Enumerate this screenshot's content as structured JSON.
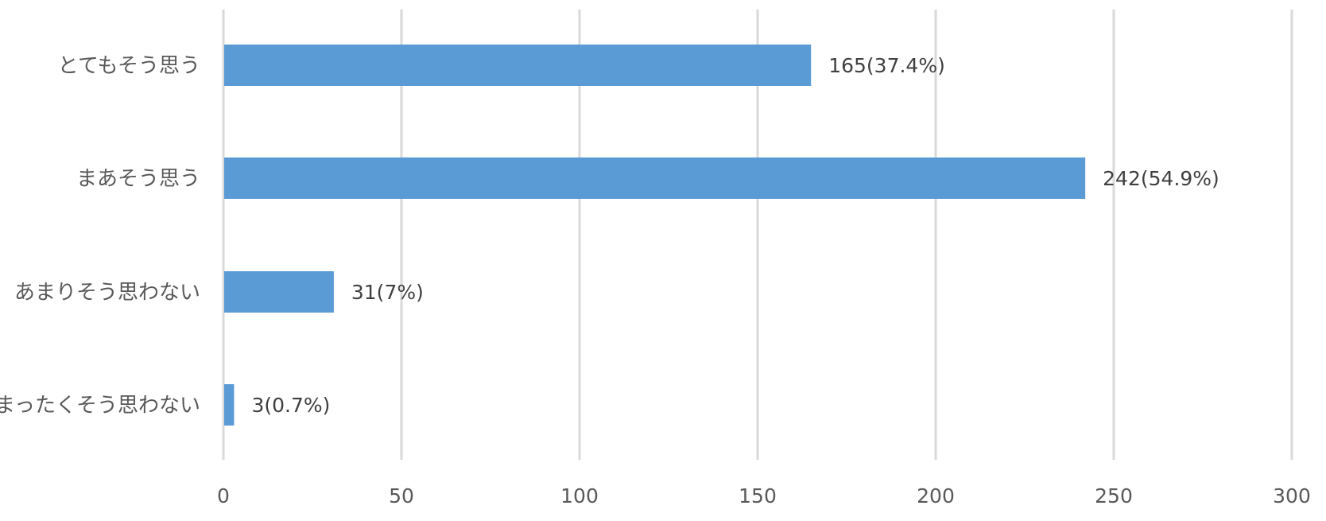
{
  "chart_data": {
    "type": "bar",
    "orientation": "horizontal",
    "categories": [
      "とてもそう思う",
      "まあそう思う",
      "あまりそう思わない",
      "まったくそう思わない"
    ],
    "values": [
      165,
      242,
      31,
      3
    ],
    "data_labels": [
      "165(37.4%)",
      "242(54.9%)",
      "31(7%)",
      "3(0.7%)"
    ],
    "xlim": [
      0,
      300
    ],
    "x_ticks": [
      "0",
      "50",
      "100",
      "150",
      "200",
      "250",
      "300"
    ],
    "grid": "vertical",
    "bar_color": "#5b9bd5",
    "gridline_color": "#d9d9d9",
    "title": "",
    "xlabel": "",
    "ylabel": ""
  }
}
